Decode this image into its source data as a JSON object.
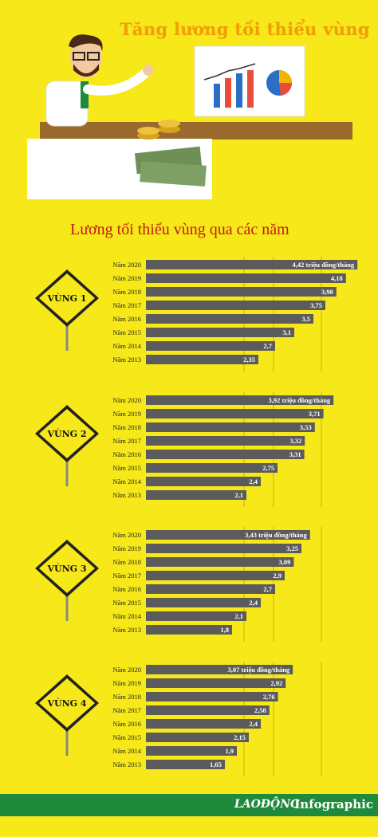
{
  "header": {
    "title": "Tăng lương tối thiểu vùng",
    "subtitle": "Lương tối thiểu vùng qua các năm"
  },
  "footer": {
    "brand": "LAOĐỘNG",
    "label": "Infographic"
  },
  "colors": {
    "background": "#f7e81a",
    "bar": "#5b5b5b",
    "sign": "#f7e81a",
    "footer": "#1f8a3c",
    "title": "#f0a000",
    "subtitle": "#c41a1a"
  },
  "chart_data": [
    {
      "type": "bar",
      "sign_label": "VÙNG 1",
      "categories": [
        "Năm 2020",
        "Năm 2019",
        "Năm 2018",
        "Năm 2017",
        "Năm 2016",
        "Năm 2015",
        "Năm 2014",
        "Năm 2013"
      ],
      "values": [
        4.42,
        4.18,
        3.98,
        3.75,
        3.5,
        3.1,
        2.7,
        2.35
      ],
      "value_labels": [
        "4,42 triệu đồng/tháng",
        "4,18",
        "3,98",
        "3,75",
        "3,5",
        "3,1",
        "2,7",
        "2,35"
      ],
      "xlim": [
        0,
        4.5
      ]
    },
    {
      "type": "bar",
      "sign_label": "VÙNG 2",
      "categories": [
        "Năm 2020",
        "Năm 2019",
        "Năm 2018",
        "Năm 2017",
        "Năm 2016",
        "Năm 2015",
        "Năm 2014",
        "Năm 2013"
      ],
      "values": [
        3.92,
        3.71,
        3.53,
        3.32,
        3.31,
        2.75,
        2.4,
        2.1
      ],
      "value_labels": [
        "3,92 triệu đồng/tháng",
        "3,71",
        "3,53",
        "3,32",
        "3,31",
        "2,75",
        "2,4",
        "2,1"
      ],
      "xlim": [
        0,
        4.5
      ]
    },
    {
      "type": "bar",
      "sign_label": "VÙNG 3",
      "categories": [
        "Năm 2020",
        "Năm 2019",
        "Năm 2018",
        "Năm 2017",
        "Năm 2016",
        "Năm 2015",
        "Năm 2014",
        "Năm 2013"
      ],
      "values": [
        3.43,
        3.25,
        3.09,
        2.9,
        2.7,
        2.4,
        2.1,
        1.8
      ],
      "value_labels": [
        "3,43 triệu đồng/tháng",
        "3,25",
        "3,09",
        "2,9",
        "2,7",
        "2,4",
        "2,1",
        "1,8"
      ],
      "xlim": [
        0,
        4.5
      ]
    },
    {
      "type": "bar",
      "sign_label": "VÙNG 4",
      "categories": [
        "Năm 2020",
        "Năm 2019",
        "Năm 2018",
        "Năm 2017",
        "Năm 2016",
        "Năm 2015",
        "Năm 2014",
        "Năm 2013"
      ],
      "values": [
        3.07,
        2.92,
        2.76,
        2.58,
        2.4,
        2.15,
        1.9,
        1.65
      ],
      "value_labels": [
        "3,07 triệu đồng/tháng",
        "2,92",
        "2,76",
        "2,58",
        "2,4",
        "2,15",
        "1,9",
        "1,65"
      ],
      "xlim": [
        0,
        4.5
      ]
    }
  ]
}
